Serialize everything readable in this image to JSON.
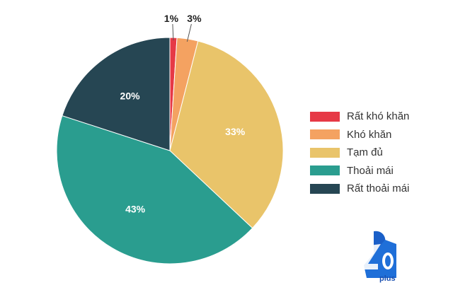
{
  "chart_data": {
    "type": "pie",
    "title": "",
    "categories": [
      "Rất khó khăn",
      "Khó khăn",
      "Tạm đủ",
      "Thoải mái",
      "Rất thoải mái"
    ],
    "values": [
      1,
      3,
      33,
      43,
      20
    ],
    "labels": [
      "1%",
      "3%",
      "33%",
      "43%",
      "20%"
    ],
    "colors": [
      "#e63946",
      "#f4a261",
      "#e9c46a",
      "#2a9d8f",
      "#264653"
    ],
    "start": "top, clockwise",
    "legend_position": "right"
  },
  "logo": {
    "text": "40 plus",
    "color": "#1a5fc8"
  }
}
